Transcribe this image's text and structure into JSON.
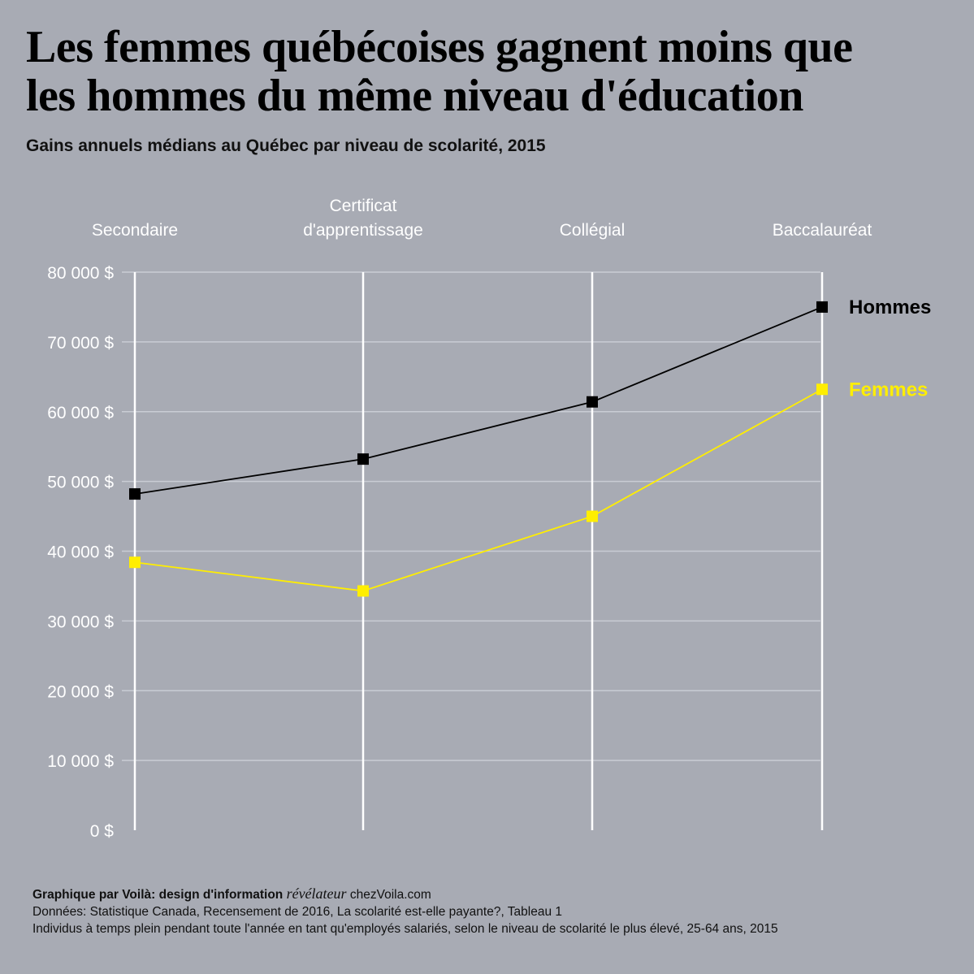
{
  "title_line1": "Les femmes québécoises gagnent moins que",
  "title_line2": "les hommes du même niveau d'éducation",
  "subtitle": "Gains annuels médians au Québec par niveau de scolarité, 2015",
  "footer": {
    "credit_bold": "Graphique par Voilà: design d'information",
    "credit_italic": "révélateur",
    "credit_site": "chezVoila.com",
    "source": "Données: Statistique Canada, Recensement de 2016, La scolarité est-elle payante?, Tableau 1",
    "note": "Individus à temps plein pendant toute l'année en tant qu'employés salariés, selon le niveau de scolarité le plus élevé, 25-64 ans, 2015"
  },
  "chart_data": {
    "type": "line",
    "categories": [
      [
        "Secondaire"
      ],
      [
        "Certificat",
        "d'apprentissage"
      ],
      [
        "Collégial"
      ],
      [
        "Baccalauréat"
      ]
    ],
    "y_ticks": [
      0,
      10000,
      20000,
      30000,
      40000,
      50000,
      60000,
      70000,
      80000
    ],
    "y_tick_labels": [
      "0 $",
      "10 000 $",
      "20 000 $",
      "30 000 $",
      "40 000 $",
      "50 000 $",
      "60 000 $",
      "70 000 $",
      "80 000 $"
    ],
    "ylim": [
      0,
      80000
    ],
    "grid": true,
    "legend": "right, next to last point",
    "series": [
      {
        "name": "Hommes",
        "color": "#000000",
        "values": [
          48200,
          53200,
          61400,
          75000
        ]
      },
      {
        "name": "Femmes",
        "color": "#ffee00",
        "values": [
          38400,
          34300,
          45000,
          63200
        ]
      }
    ]
  }
}
